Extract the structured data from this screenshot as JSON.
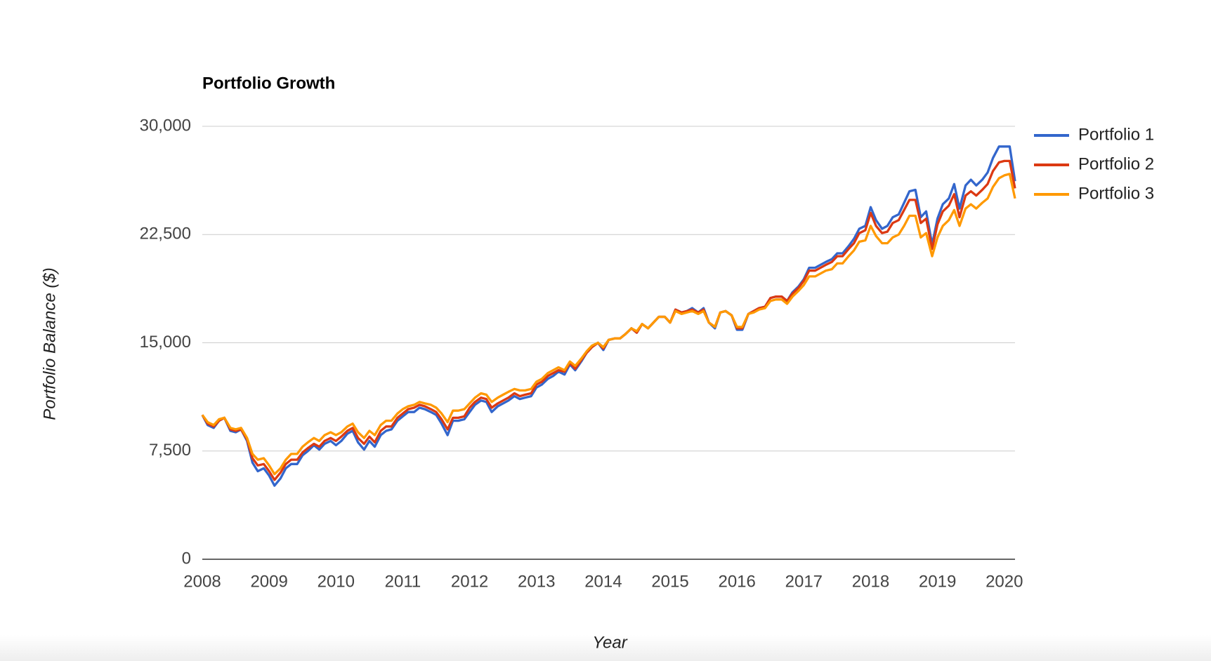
{
  "chart_data": {
    "type": "line",
    "title": "Portfolio Growth",
    "x_label": "Year",
    "y_label": "Portfolio Balance ($)",
    "xlim": [
      2008,
      2020.16
    ],
    "xticks": [
      2008,
      2009,
      2010,
      2011,
      2012,
      2013,
      2014,
      2015,
      2016,
      2017,
      2018,
      2019,
      2020
    ],
    "ylim": [
      0,
      30000
    ],
    "yticks": [
      0,
      {
        "value": 7500,
        "label": "7,500"
      },
      {
        "value": 15000,
        "label": "15,000"
      },
      {
        "value": 22500,
        "label": "22,500"
      },
      {
        "value": 30000,
        "label": "30,000"
      }
    ],
    "grid": true,
    "legend": "right",
    "x": [
      2008.0,
      2008.08,
      2008.17,
      2008.25,
      2008.33,
      2008.42,
      2008.5,
      2008.58,
      2008.67,
      2008.75,
      2008.83,
      2008.92,
      2009.0,
      2009.08,
      2009.17,
      2009.25,
      2009.33,
      2009.42,
      2009.5,
      2009.58,
      2009.67,
      2009.75,
      2009.83,
      2009.92,
      2010.0,
      2010.08,
      2010.17,
      2010.25,
      2010.33,
      2010.42,
      2010.5,
      2010.58,
      2010.67,
      2010.75,
      2010.83,
      2010.92,
      2011.0,
      2011.08,
      2011.17,
      2011.25,
      2011.33,
      2011.42,
      2011.5,
      2011.58,
      2011.67,
      2011.75,
      2011.83,
      2011.92,
      2012.0,
      2012.08,
      2012.17,
      2012.25,
      2012.33,
      2012.42,
      2012.5,
      2012.58,
      2012.67,
      2012.75,
      2012.83,
      2012.92,
      2013.0,
      2013.08,
      2013.17,
      2013.25,
      2013.33,
      2013.42,
      2013.5,
      2013.58,
      2013.67,
      2013.75,
      2013.83,
      2013.92,
      2014.0,
      2014.08,
      2014.17,
      2014.25,
      2014.33,
      2014.42,
      2014.5,
      2014.58,
      2014.67,
      2014.75,
      2014.83,
      2014.92,
      2015.0,
      2015.08,
      2015.17,
      2015.25,
      2015.33,
      2015.42,
      2015.5,
      2015.58,
      2015.67,
      2015.75,
      2015.83,
      2015.92,
      2016.0,
      2016.08,
      2016.17,
      2016.25,
      2016.33,
      2016.42,
      2016.5,
      2016.58,
      2016.67,
      2016.75,
      2016.83,
      2016.92,
      2017.0,
      2017.08,
      2017.17,
      2017.25,
      2017.33,
      2017.42,
      2017.5,
      2017.58,
      2017.67,
      2017.75,
      2017.83,
      2017.92,
      2018.0,
      2018.08,
      2018.17,
      2018.25,
      2018.33,
      2018.42,
      2018.5,
      2018.58,
      2018.67,
      2018.75,
      2018.83,
      2018.92,
      2019.0,
      2019.08,
      2019.17,
      2019.25,
      2019.33,
      2019.42,
      2019.5,
      2019.58,
      2019.67,
      2019.75,
      2019.83,
      2019.92,
      2020.0,
      2020.08,
      2020.16
    ],
    "series": [
      {
        "name": "Portfolio 1",
        "color": "#3366cc",
        "values": [
          10000,
          9300,
          9100,
          9600,
          9800,
          8900,
          8800,
          9000,
          8200,
          6700,
          6100,
          6300,
          5800,
          5100,
          5600,
          6300,
          6600,
          6600,
          7200,
          7500,
          7900,
          7600,
          8000,
          8200,
          7900,
          8200,
          8700,
          8900,
          8100,
          7600,
          8200,
          7800,
          8600,
          8900,
          9000,
          9600,
          9900,
          10200,
          10200,
          10500,
          10400,
          10200,
          10000,
          9400,
          8600,
          9600,
          9600,
          9700,
          10200,
          10700,
          11000,
          10900,
          10200,
          10600,
          10800,
          11000,
          11300,
          11100,
          11200,
          11300,
          11900,
          12100,
          12500,
          12700,
          13000,
          12800,
          13500,
          13100,
          13700,
          14300,
          14700,
          15000,
          14500,
          15200,
          15300,
          15300,
          15600,
          16000,
          15700,
          16300,
          16000,
          16400,
          16800,
          16800,
          16400,
          17300,
          17100,
          17200,
          17400,
          17100,
          17400,
          16400,
          16000,
          17100,
          17200,
          16900,
          15900,
          15900,
          17000,
          17200,
          17400,
          17500,
          18100,
          18200,
          18200,
          17900,
          18500,
          18900,
          19400,
          20200,
          20200,
          20400,
          20600,
          20800,
          21200,
          21200,
          21700,
          22200,
          22900,
          23100,
          24400,
          23500,
          22900,
          23100,
          23700,
          23900,
          24700,
          25500,
          25600,
          23700,
          24100,
          21800,
          23600,
          24600,
          25000,
          26000,
          24300,
          25900,
          26300,
          25900,
          26300,
          26800,
          27800,
          28600,
          28600,
          28600,
          26200
        ]
      },
      {
        "name": "Portfolio 2",
        "color": "#dc3912",
        "values": [
          10000,
          9400,
          9200,
          9600,
          9800,
          9000,
          8900,
          9000,
          8300,
          7000,
          6500,
          6600,
          6100,
          5500,
          6000,
          6600,
          6900,
          6900,
          7400,
          7700,
          8000,
          7800,
          8200,
          8400,
          8200,
          8500,
          8900,
          9100,
          8400,
          8000,
          8500,
          8100,
          8900,
          9200,
          9200,
          9800,
          10100,
          10400,
          10500,
          10700,
          10600,
          10400,
          10200,
          9700,
          9000,
          9800,
          9800,
          9900,
          10500,
          10900,
          11200,
          11100,
          10500,
          10800,
          11000,
          11200,
          11500,
          11300,
          11400,
          11500,
          12100,
          12300,
          12700,
          12900,
          13100,
          13000,
          13600,
          13200,
          13800,
          14300,
          14700,
          15000,
          14600,
          15200,
          15300,
          15300,
          15600,
          16000,
          15700,
          16300,
          16000,
          16400,
          16800,
          16800,
          16400,
          17300,
          17100,
          17200,
          17300,
          17100,
          17300,
          16400,
          16100,
          17100,
          17200,
          16900,
          16000,
          16000,
          17000,
          17200,
          17400,
          17500,
          18100,
          18200,
          18200,
          17900,
          18400,
          18800,
          19300,
          20000,
          20000,
          20200,
          20400,
          20600,
          21000,
          21000,
          21500,
          21900,
          22600,
          22800,
          24000,
          23100,
          22600,
          22700,
          23300,
          23500,
          24200,
          24900,
          24900,
          23300,
          23600,
          21500,
          23200,
          24100,
          24500,
          25300,
          23700,
          25200,
          25500,
          25200,
          25600,
          26000,
          26900,
          27500,
          27600,
          27600,
          25700
        ]
      },
      {
        "name": "Portfolio 3",
        "color": "#ff9900",
        "values": [
          10000,
          9500,
          9300,
          9700,
          9800,
          9100,
          9000,
          9100,
          8400,
          7300,
          6900,
          7000,
          6500,
          5900,
          6300,
          6900,
          7300,
          7300,
          7800,
          8100,
          8400,
          8200,
          8600,
          8800,
          8600,
          8800,
          9200,
          9400,
          8800,
          8400,
          8900,
          8600,
          9300,
          9600,
          9600,
          10100,
          10400,
          10600,
          10700,
          10900,
          10800,
          10700,
          10500,
          10100,
          9500,
          10300,
          10300,
          10400,
          10800,
          11200,
          11500,
          11400,
          10900,
          11200,
          11400,
          11600,
          11800,
          11700,
          11700,
          11800,
          12300,
          12500,
          12900,
          13100,
          13300,
          13100,
          13700,
          13400,
          13900,
          14400,
          14800,
          15000,
          14700,
          15200,
          15300,
          15300,
          15600,
          16000,
          15800,
          16300,
          16000,
          16400,
          16800,
          16800,
          16400,
          17200,
          17000,
          17100,
          17200,
          17000,
          17200,
          16400,
          16100,
          17100,
          17200,
          16900,
          16100,
          16100,
          17000,
          17100,
          17300,
          17400,
          17900,
          18000,
          18000,
          17700,
          18200,
          18600,
          19000,
          19600,
          19600,
          19800,
          20000,
          20100,
          20500,
          20500,
          21000,
          21400,
          22000,
          22100,
          23100,
          22400,
          21900,
          21900,
          22300,
          22500,
          23100,
          23800,
          23800,
          22300,
          22600,
          21000,
          22300,
          23100,
          23500,
          24200,
          23100,
          24300,
          24600,
          24300,
          24700,
          25000,
          25800,
          26400,
          26600,
          26700,
          25000
        ]
      }
    ]
  }
}
